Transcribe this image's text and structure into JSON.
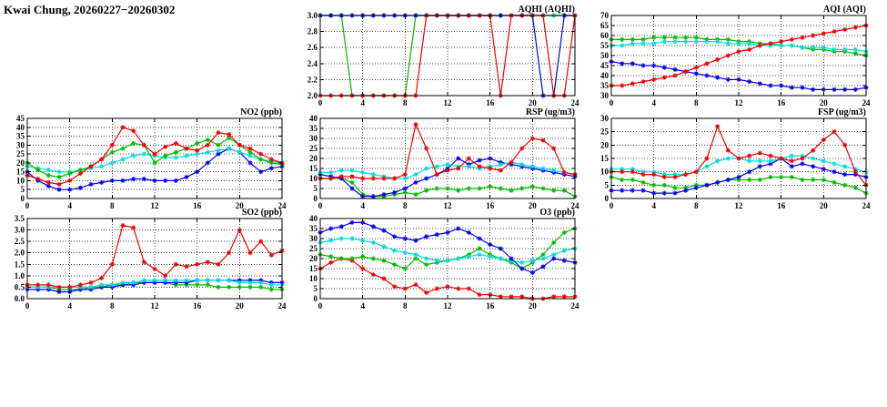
{
  "page_title": "Kwai Chung, 20260227−20260302",
  "colors": {
    "red": "#ee0000",
    "green": "#00bb00",
    "blue": "#0000ee",
    "cyan": "#00dddd"
  },
  "chart_data": [
    {
      "id": "aqhi",
      "type": "line",
      "title": "AQHI (AQHI)",
      "xlim": [
        0,
        24
      ],
      "xticks": [
        0,
        4,
        8,
        12,
        16,
        20,
        24
      ],
      "ylim": [
        2.0,
        3.0
      ],
      "yticks": [
        "3.0",
        "2.8",
        "2.6",
        "2.4",
        "2.2",
        "2.0"
      ],
      "x": [
        0,
        1,
        2,
        3,
        4,
        5,
        6,
        7,
        8,
        9,
        10,
        11,
        12,
        13,
        14,
        15,
        16,
        17,
        18,
        19,
        20,
        21,
        22,
        23,
        24
      ],
      "series": [
        {
          "name": "green",
          "color": "green",
          "values": [
            3,
            3,
            3,
            2,
            2,
            2,
            2,
            2,
            2,
            3,
            3,
            3,
            3,
            3,
            3,
            3,
            3,
            3,
            3,
            3,
            3,
            3,
            3,
            3,
            3
          ]
        },
        {
          "name": "cyan",
          "color": "cyan",
          "values": [
            3,
            3,
            3,
            3,
            3,
            3,
            3,
            3,
            3,
            3,
            3,
            3,
            3,
            3,
            3,
            3,
            3,
            3,
            3,
            3,
            3,
            3,
            3,
            3,
            3
          ]
        },
        {
          "name": "blue",
          "color": "blue",
          "values": [
            3,
            3,
            3,
            3,
            3,
            3,
            3,
            3,
            3,
            3,
            3,
            3,
            3,
            3,
            3,
            3,
            3,
            3,
            3,
            3,
            3,
            2,
            2,
            3,
            3
          ]
        },
        {
          "name": "red",
          "color": "red",
          "values": [
            2,
            2,
            2,
            2,
            2,
            2,
            2,
            2,
            2,
            2,
            3,
            3,
            3,
            3,
            3,
            3,
            3,
            2,
            3,
            3,
            3,
            3,
            2,
            2,
            3
          ]
        }
      ]
    },
    {
      "id": "aqi",
      "type": "line",
      "title": "AQI (AQI)",
      "xlim": [
        0,
        24
      ],
      "xticks": [
        0,
        4,
        8,
        12,
        16,
        20,
        24
      ],
      "ylim": [
        30,
        70
      ],
      "yticks": [
        "70",
        "65",
        "60",
        "55",
        "50",
        "45",
        "40",
        "35",
        "30"
      ],
      "x": [
        0,
        1,
        2,
        3,
        4,
        5,
        6,
        7,
        8,
        9,
        10,
        11,
        12,
        13,
        14,
        15,
        16,
        17,
        18,
        19,
        20,
        21,
        22,
        23,
        24
      ],
      "series": [
        {
          "name": "green",
          "color": "green",
          "values": [
            58,
            58,
            58,
            58,
            59,
            59,
            59,
            59,
            59,
            58,
            58,
            58,
            57,
            57,
            56,
            56,
            55,
            55,
            54,
            53,
            53,
            52,
            52,
            51,
            50
          ]
        },
        {
          "name": "cyan",
          "color": "cyan",
          "values": [
            55,
            55,
            56,
            56,
            56,
            57,
            57,
            57,
            57,
            57,
            57,
            56,
            56,
            56,
            55,
            55,
            55,
            55,
            54,
            54,
            54,
            53,
            53,
            53,
            52
          ]
        },
        {
          "name": "blue",
          "color": "blue",
          "values": [
            47,
            46,
            46,
            45,
            45,
            44,
            43,
            42,
            41,
            40,
            39,
            38,
            38,
            37,
            36,
            35,
            35,
            34,
            34,
            33,
            33,
            33,
            33,
            33,
            34
          ]
        },
        {
          "name": "red",
          "color": "red",
          "values": [
            35,
            35,
            36,
            37,
            38,
            39,
            40,
            42,
            44,
            46,
            48,
            50,
            52,
            53,
            55,
            56,
            57,
            58,
            59,
            60,
            61,
            62,
            63,
            64,
            65
          ]
        }
      ]
    },
    {
      "id": "no2",
      "type": "line",
      "title": "NO2 (ppb)",
      "xlim": [
        0,
        24
      ],
      "xticks": [
        0,
        4,
        8,
        12,
        16,
        20,
        24
      ],
      "ylim": [
        0,
        45
      ],
      "yticks": [
        "45",
        "40",
        "35",
        "30",
        "25",
        "20",
        "15",
        "10",
        "5",
        "0"
      ],
      "x": [
        0,
        1,
        2,
        3,
        4,
        5,
        6,
        7,
        8,
        9,
        10,
        11,
        12,
        13,
        14,
        15,
        16,
        17,
        18,
        19,
        20,
        21,
        22,
        23,
        24
      ],
      "series": [
        {
          "name": "blue",
          "color": "blue",
          "values": [
            15,
            10,
            7,
            5,
            5,
            6,
            8,
            9,
            10,
            10,
            11,
            11,
            10,
            10,
            10,
            12,
            15,
            20,
            25,
            28,
            26,
            20,
            15,
            17,
            18
          ]
        },
        {
          "name": "cyan",
          "color": "cyan",
          "values": [
            18,
            17,
            16,
            15,
            15,
            16,
            17,
            18,
            20,
            22,
            24,
            25,
            24,
            23,
            23,
            24,
            25,
            26,
            27,
            28,
            26,
            24,
            22,
            21,
            20
          ]
        },
        {
          "name": "green",
          "color": "green",
          "values": [
            20,
            16,
            13,
            12,
            14,
            16,
            18,
            22,
            26,
            28,
            31,
            30,
            20,
            24,
            26,
            28,
            31,
            33,
            30,
            34,
            30,
            26,
            22,
            20,
            19
          ]
        },
        {
          "name": "red",
          "color": "red",
          "values": [
            13,
            11,
            9,
            8,
            10,
            14,
            18,
            22,
            30,
            40,
            38,
            30,
            25,
            29,
            31,
            28,
            27,
            30,
            37,
            36,
            30,
            28,
            25,
            22,
            20
          ]
        }
      ]
    },
    {
      "id": "rsp",
      "type": "line",
      "title": "RSP (ug/m3)",
      "xlim": [
        0,
        24
      ],
      "xticks": [
        0,
        4,
        8,
        12,
        16,
        20,
        24
      ],
      "ylim": [
        0,
        40
      ],
      "yticks": [
        "40",
        "35",
        "30",
        "25",
        "20",
        "15",
        "10",
        "5",
        "0"
      ],
      "x": [
        0,
        1,
        2,
        3,
        4,
        5,
        6,
        7,
        8,
        9,
        10,
        11,
        12,
        13,
        14,
        15,
        16,
        17,
        18,
        19,
        20,
        21,
        22,
        23,
        24
      ],
      "series": [
        {
          "name": "green",
          "color": "green",
          "values": [
            10,
            10,
            10,
            8,
            2,
            1,
            1,
            2,
            3,
            2,
            4,
            5,
            5,
            4,
            5,
            5,
            6,
            5,
            4,
            5,
            6,
            5,
            4,
            4,
            1
          ]
        },
        {
          "name": "blue",
          "color": "blue",
          "values": [
            12,
            11,
            10,
            5,
            1,
            1,
            2,
            3,
            5,
            8,
            10,
            12,
            15,
            20,
            17,
            19,
            20,
            18,
            17,
            16,
            15,
            14,
            13,
            12,
            11
          ]
        },
        {
          "name": "cyan",
          "color": "cyan",
          "values": [
            13,
            13,
            14,
            14,
            13,
            12,
            11,
            10,
            10,
            12,
            15,
            16,
            17,
            16,
            16,
            15,
            16,
            17,
            18,
            17,
            16,
            15,
            14,
            13,
            12
          ]
        },
        {
          "name": "red",
          "color": "red",
          "values": [
            10,
            10,
            11,
            11,
            10,
            10,
            10,
            10,
            12,
            37,
            25,
            12,
            14,
            15,
            20,
            16,
            15,
            14,
            18,
            25,
            30,
            29,
            25,
            13,
            12
          ]
        }
      ]
    },
    {
      "id": "fsp",
      "type": "line",
      "title": "FSP (ug/m3)",
      "xlim": [
        0,
        24
      ],
      "xticks": [
        0,
        4,
        8,
        12,
        16,
        20,
        24
      ],
      "ylim": [
        0,
        30
      ],
      "yticks": [
        "30",
        "25",
        "20",
        "15",
        "10",
        "5",
        "0"
      ],
      "x": [
        0,
        1,
        2,
        3,
        4,
        5,
        6,
        7,
        8,
        9,
        10,
        11,
        12,
        13,
        14,
        15,
        16,
        17,
        18,
        19,
        20,
        21,
        22,
        23,
        24
      ],
      "series": [
        {
          "name": "green",
          "color": "green",
          "values": [
            8,
            7,
            7,
            6,
            5,
            5,
            4,
            4,
            5,
            5,
            6,
            7,
            7,
            7,
            7,
            8,
            8,
            8,
            7,
            7,
            7,
            6,
            5,
            4,
            2
          ]
        },
        {
          "name": "blue",
          "color": "blue",
          "values": [
            3,
            3,
            3,
            3,
            2,
            2,
            2,
            3,
            4,
            5,
            6,
            7,
            8,
            10,
            12,
            13,
            15,
            12,
            13,
            12,
            11,
            10,
            9,
            9,
            8
          ]
        },
        {
          "name": "cyan",
          "color": "cyan",
          "values": [
            11,
            11,
            11,
            10,
            10,
            9,
            9,
            9,
            10,
            12,
            14,
            15,
            15,
            14,
            14,
            14,
            15,
            16,
            16,
            15,
            14,
            13,
            12,
            11,
            10
          ]
        },
        {
          "name": "red",
          "color": "red",
          "values": [
            10,
            10,
            10,
            9,
            9,
            8,
            8,
            9,
            10,
            15,
            27,
            18,
            15,
            16,
            17,
            16,
            15,
            14,
            15,
            18,
            22,
            25,
            20,
            10,
            5
          ]
        }
      ]
    },
    {
      "id": "so2",
      "type": "line",
      "title": "SO2 (ppb)",
      "xlim": [
        0,
        24
      ],
      "xticks": [
        0,
        4,
        8,
        12,
        16,
        20,
        24
      ],
      "ylim": [
        0,
        3.5
      ],
      "yticks": [
        "3.5",
        "3.0",
        "2.5",
        "2.0",
        "1.5",
        "1.0",
        "0.5",
        "0.0"
      ],
      "x": [
        0,
        1,
        2,
        3,
        4,
        5,
        6,
        7,
        8,
        9,
        10,
        11,
        12,
        13,
        14,
        15,
        16,
        17,
        18,
        19,
        20,
        21,
        22,
        23,
        24
      ],
      "series": [
        {
          "name": "green",
          "color": "green",
          "values": [
            0.5,
            0.5,
            0.5,
            0.4,
            0.4,
            0.4,
            0.5,
            0.5,
            0.6,
            0.6,
            0.7,
            0.7,
            0.7,
            0.7,
            0.6,
            0.6,
            0.6,
            0.6,
            0.5,
            0.5,
            0.5,
            0.5,
            0.5,
            0.4,
            0.4
          ]
        },
        {
          "name": "blue",
          "color": "blue",
          "values": [
            0.4,
            0.4,
            0.4,
            0.3,
            0.3,
            0.4,
            0.4,
            0.5,
            0.5,
            0.6,
            0.6,
            0.7,
            0.7,
            0.7,
            0.7,
            0.7,
            0.8,
            0.8,
            0.8,
            0.8,
            0.8,
            0.8,
            0.8,
            0.7,
            0.7
          ]
        },
        {
          "name": "cyan",
          "color": "cyan",
          "values": [
            0.5,
            0.5,
            0.5,
            0.5,
            0.5,
            0.5,
            0.5,
            0.6,
            0.6,
            0.7,
            0.7,
            0.8,
            0.8,
            0.8,
            0.8,
            0.8,
            0.8,
            0.8,
            0.8,
            0.8,
            0.7,
            0.7,
            0.7,
            0.6,
            0.6
          ]
        },
        {
          "name": "red",
          "color": "red",
          "values": [
            0.6,
            0.6,
            0.6,
            0.5,
            0.5,
            0.6,
            0.7,
            0.9,
            1.5,
            3.2,
            3.1,
            1.6,
            1.3,
            1.0,
            1.5,
            1.4,
            1.5,
            1.6,
            1.5,
            2.0,
            3.0,
            2.0,
            2.5,
            1.9,
            2.1
          ]
        }
      ]
    },
    {
      "id": "o3",
      "type": "line",
      "title": "O3 (ppb)",
      "xlim": [
        0,
        24
      ],
      "xticks": [
        0,
        4,
        8,
        12,
        16,
        20,
        24
      ],
      "ylim": [
        0,
        40
      ],
      "yticks": [
        "40",
        "35",
        "30",
        "25",
        "20",
        "15",
        "10",
        "5",
        "0"
      ],
      "x": [
        0,
        1,
        2,
        3,
        4,
        5,
        6,
        7,
        8,
        9,
        10,
        11,
        12,
        13,
        14,
        15,
        16,
        17,
        18,
        19,
        20,
        21,
        22,
        23,
        24
      ],
      "series": [
        {
          "name": "red",
          "color": "red",
          "values": [
            15,
            18,
            20,
            19,
            15,
            12,
            10,
            6,
            5,
            7,
            3,
            5,
            6,
            5,
            5,
            2,
            2,
            1,
            1,
            1,
            0,
            0,
            1,
            1,
            1
          ]
        },
        {
          "name": "green",
          "color": "green",
          "values": [
            22,
            21,
            20,
            20,
            21,
            20,
            19,
            17,
            15,
            20,
            17,
            18,
            19,
            20,
            22,
            25,
            22,
            20,
            18,
            15,
            18,
            22,
            28,
            33,
            35
          ]
        },
        {
          "name": "cyan",
          "color": "cyan",
          "values": [
            28,
            29,
            30,
            30,
            29,
            28,
            26,
            24,
            23,
            22,
            20,
            19,
            19,
            20,
            21,
            22,
            21,
            20,
            19,
            18,
            19,
            20,
            22,
            24,
            25
          ]
        },
        {
          "name": "blue",
          "color": "blue",
          "values": [
            33,
            35,
            36,
            38,
            38,
            36,
            34,
            31,
            30,
            29,
            31,
            32,
            33,
            35,
            33,
            30,
            27,
            25,
            20,
            15,
            13,
            16,
            20,
            19,
            18
          ]
        }
      ]
    }
  ]
}
